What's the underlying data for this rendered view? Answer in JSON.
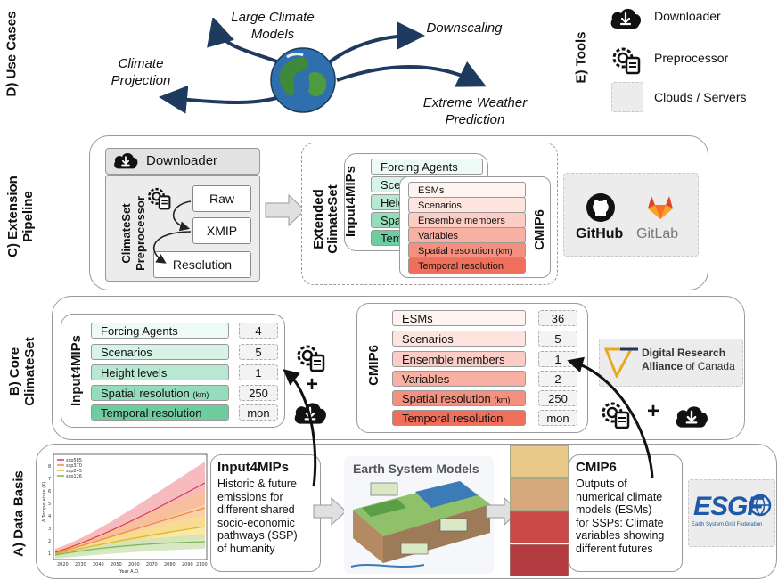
{
  "sections": {
    "d": "D) Use Cases",
    "c": "C) Extension\nPipeline",
    "b": "B) Core\nClimateSet",
    "a": "A) Data Basis",
    "e": "E) Tools"
  },
  "use_cases": {
    "large_models": "Large Climate\nModels",
    "downscaling": "Downscaling",
    "projection": "Climate\nProjection",
    "extreme": "Extreme Weather\nPrediction"
  },
  "tools": {
    "downloader": "Downloader",
    "preprocessor": "Preprocessor",
    "clouds": "Clouds / Servers"
  },
  "pipeline": {
    "downloader": "Downloader",
    "preprocessor_title": "ClimateSet\nPreprocessor",
    "raw": "Raw",
    "xmip": "XMIP",
    "resolution": "Resolution",
    "extended_title": "Extended\nClimateSet",
    "input4mips_title": "Input4MIPs",
    "cmip6_title": "CMIP6",
    "input4mips_rows": [
      "Forcing Agents",
      "Scenarios",
      "Height levels",
      "Spatial resolution",
      "Temporal resolution"
    ],
    "cmip6_rows": [
      "ESMs",
      "Scenarios",
      "Ensemble members",
      "Variables",
      "Spatial resolution",
      "Temporal resolution"
    ],
    "km": "(km)",
    "github": "GitHub",
    "gitlab": "GitLab"
  },
  "core": {
    "input4mips_title": "Input4MIPs",
    "input4mips_rows": [
      {
        "label": "Forcing Agents",
        "value": "4",
        "color": "#eefaf5"
      },
      {
        "label": "Scenarios",
        "value": "5",
        "color": "#d7f2e6"
      },
      {
        "label": "Height levels",
        "value": "1",
        "color": "#b8e8d2"
      },
      {
        "label": "Spatial resolution",
        "value": "250",
        "color": "#94dcba"
      },
      {
        "label": "Temporal resolution",
        "value": "mon",
        "color": "#6fcc9f"
      }
    ],
    "cmip6_title": "CMIP6",
    "cmip6_rows": [
      {
        "label": "ESMs",
        "value": "36",
        "color": "#fff3f1"
      },
      {
        "label": "Scenarios",
        "value": "5",
        "color": "#fde4df"
      },
      {
        "label": "Ensemble members",
        "value": "1",
        "color": "#fbcdc4"
      },
      {
        "label": "Variables",
        "value": "2",
        "color": "#f8b0a3"
      },
      {
        "label": "Spatial resolution",
        "value": "250",
        "color": "#f4907f"
      },
      {
        "label": "Temporal resolution",
        "value": "mon",
        "color": "#ef6f5a"
      }
    ],
    "km": "(km)",
    "plus": "+",
    "alliance_line1": "Digital Research",
    "alliance_line2": "Alliance",
    "alliance_line3": "of Canada"
  },
  "basis": {
    "input4mips_title": "Input4MIPs",
    "input4mips_text": "Historic & future\nemissions for\ndifferent shared\nsocio-economic\npathways (SSP)\nof humanity",
    "esm_title": "Earth System Models",
    "cmip6_title": "CMIP6",
    "cmip6_text": "Outputs of\nnumerical climate\nmodels (ESMs)\nfor SSPs: Climate\nvariables showing\ndifferent futures",
    "esgf": "ESGF",
    "esgf_sub": "Earth System Grid Federation",
    "plot": {
      "ylabel": "Δ Temperature (K)",
      "xlabel": "Year A.D.",
      "xticks": [
        "2020",
        "2030",
        "2040",
        "2050",
        "2060",
        "2070",
        "2080",
        "2090",
        "2100"
      ],
      "yticks": [
        "1",
        "2",
        "3",
        "4",
        "5",
        "6",
        "7",
        "8"
      ],
      "legend": [
        "ssp585",
        "ssp370",
        "ssp245",
        "ssp126"
      ],
      "colors": [
        "#d93b4a",
        "#f08a3c",
        "#f2c94c",
        "#a8d08d"
      ]
    }
  }
}
